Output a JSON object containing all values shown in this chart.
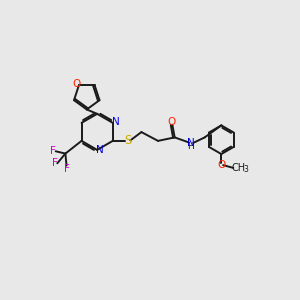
{
  "bg_color": "#e8e8e8",
  "bond_color": "#1a1a1a",
  "colors": {
    "N": "#0000ee",
    "O": "#ff2200",
    "S": "#ccaa00",
    "F": "#cc00cc",
    "H": "#1a1a1a",
    "C": "#1a1a1a"
  }
}
